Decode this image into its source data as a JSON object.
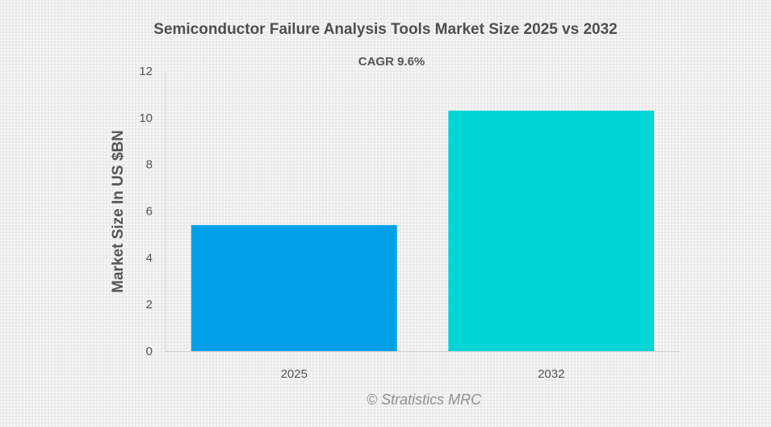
{
  "chart_data": {
    "type": "bar",
    "title": "Semiconductor Failure Analysis Tools Market Size 2025 vs 2032",
    "subtitle": "CAGR 9.6%",
    "xlabel": "",
    "ylabel": "Market Size In US $BN",
    "categories": [
      "2025",
      "2032"
    ],
    "values": [
      5.4,
      10.3
    ],
    "colors": [
      "#00a0e9",
      "#00d4d4"
    ],
    "ylim": [
      0,
      12
    ],
    "yticks": [
      0,
      2,
      4,
      6,
      8,
      10,
      12
    ],
    "grid": false,
    "legend": "none"
  },
  "watermark": "© Stratistics MRC"
}
